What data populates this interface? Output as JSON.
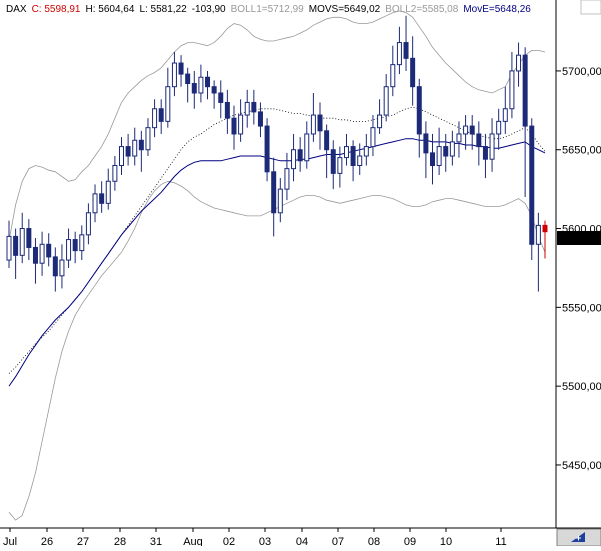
{
  "chart_data": {
    "type": "candlestick",
    "instrument": "DAX",
    "header": [
      {
        "text": "DAX",
        "color": "#000000"
      },
      {
        "text": "C: 5598,91",
        "color": "#d00000"
      },
      {
        "text": "H: 5604,64",
        "color": "#000000"
      },
      {
        "text": "L: 5581,22",
        "color": "#000000"
      },
      {
        "text": "-103,90",
        "color": "#000000"
      },
      {
        "text": "BOLL1=5712,99",
        "color": "#999999"
      },
      {
        "text": "MOVS=5649,02",
        "color": "#000000"
      },
      {
        "text": "BOLL2=5585,08",
        "color": "#999999"
      },
      {
        "text": "MovE=5648,26",
        "color": "#000080"
      }
    ],
    "ylim": [
      5410,
      5745
    ],
    "y_ticks": [
      {
        "value": 5700,
        "label": "5700,00"
      },
      {
        "value": 5650,
        "label": "5650,00"
      },
      {
        "value": 5600,
        "label": "5600,00"
      },
      {
        "value": 5550,
        "label": "5550,00"
      },
      {
        "value": 5500,
        "label": "5500,00"
      },
      {
        "value": 5450,
        "label": "5450,00"
      }
    ],
    "last_price": {
      "value": 5598.91,
      "label": "5598,91"
    },
    "x_ticks": [
      "Jul",
      "26",
      "27",
      "28",
      "31",
      "Aug",
      "02",
      "03",
      "04",
      "07",
      "08",
      "09",
      "10",
      "11"
    ],
    "candles": [
      [
        5580,
        5595,
        5605,
        5575
      ],
      [
        5595,
        5583,
        5600,
        5568
      ],
      [
        5583,
        5600,
        5610,
        5578
      ],
      [
        5600,
        5588,
        5606,
        5580
      ],
      [
        5588,
        5578,
        5594,
        5565
      ],
      [
        5578,
        5590,
        5598,
        5570
      ],
      [
        5590,
        5582,
        5597,
        5576
      ],
      [
        5582,
        5570,
        5588,
        5560
      ],
      [
        5570,
        5580,
        5590,
        5562
      ],
      [
        5580,
        5593,
        5600,
        5575
      ],
      [
        5593,
        5586,
        5598,
        5578
      ],
      [
        5586,
        5596,
        5602,
        5580
      ],
      [
        5596,
        5610,
        5616,
        5590
      ],
      [
        5610,
        5622,
        5628,
        5604
      ],
      [
        5622,
        5616,
        5630,
        5610
      ],
      [
        5616,
        5630,
        5638,
        5612
      ],
      [
        5630,
        5640,
        5646,
        5624
      ],
      [
        5640,
        5652,
        5658,
        5634
      ],
      [
        5652,
        5646,
        5660,
        5640
      ],
      [
        5646,
        5656,
        5664,
        5640
      ],
      [
        5656,
        5650,
        5662,
        5636
      ],
      [
        5650,
        5664,
        5670,
        5646
      ],
      [
        5664,
        5676,
        5682,
        5658
      ],
      [
        5676,
        5668,
        5682,
        5660
      ],
      [
        5668,
        5690,
        5702,
        5664
      ],
      [
        5690,
        5705,
        5712,
        5684
      ],
      [
        5705,
        5698,
        5710,
        5690
      ],
      [
        5698,
        5692,
        5702,
        5680
      ],
      [
        5692,
        5686,
        5700,
        5676
      ],
      [
        5686,
        5696,
        5704,
        5680
      ],
      [
        5696,
        5690,
        5700,
        5682
      ],
      [
        5690,
        5686,
        5694,
        5676
      ],
      [
        5686,
        5680,
        5694,
        5670
      ],
      [
        5680,
        5670,
        5688,
        5660
      ],
      [
        5670,
        5660,
        5678,
        5650
      ],
      [
        5660,
        5672,
        5682,
        5655
      ],
      [
        5672,
        5680,
        5688,
        5664
      ],
      [
        5680,
        5674,
        5688,
        5666
      ],
      [
        5674,
        5665,
        5680,
        5658
      ],
      [
        5665,
        5636,
        5670,
        5630
      ],
      [
        5636,
        5610,
        5645,
        5595
      ],
      [
        5610,
        5625,
        5632,
        5604
      ],
      [
        5625,
        5638,
        5648,
        5618
      ],
      [
        5638,
        5650,
        5660,
        5630
      ],
      [
        5650,
        5643,
        5658,
        5636
      ],
      [
        5643,
        5660,
        5668,
        5638
      ],
      [
        5660,
        5672,
        5686,
        5655
      ],
      [
        5672,
        5662,
        5680,
        5650
      ],
      [
        5662,
        5650,
        5666,
        5632
      ],
      [
        5650,
        5635,
        5656,
        5625
      ],
      [
        5635,
        5645,
        5652,
        5626
      ],
      [
        5645,
        5652,
        5660,
        5640
      ],
      [
        5652,
        5640,
        5656,
        5630
      ],
      [
        5640,
        5646,
        5654,
        5634
      ],
      [
        5646,
        5652,
        5660,
        5640
      ],
      [
        5652,
        5664,
        5672,
        5646
      ],
      [
        5664,
        5672,
        5682,
        5660
      ],
      [
        5672,
        5690,
        5698,
        5668
      ],
      [
        5690,
        5704,
        5716,
        5684
      ],
      [
        5704,
        5718,
        5728,
        5698
      ],
      [
        5718,
        5708,
        5735,
        5700
      ],
      [
        5708,
        5690,
        5722,
        5678
      ],
      [
        5690,
        5660,
        5695,
        5645
      ],
      [
        5660,
        5648,
        5668,
        5632
      ],
      [
        5648,
        5640,
        5660,
        5628
      ],
      [
        5640,
        5652,
        5664,
        5634
      ],
      [
        5652,
        5646,
        5660,
        5636
      ],
      [
        5646,
        5655,
        5662,
        5640
      ],
      [
        5655,
        5660,
        5668,
        5645
      ],
      [
        5660,
        5665,
        5672,
        5650
      ],
      [
        5665,
        5660,
        5672,
        5650
      ],
      [
        5660,
        5652,
        5668,
        5640
      ],
      [
        5652,
        5644,
        5660,
        5632
      ],
      [
        5644,
        5660,
        5670,
        5636
      ],
      [
        5660,
        5668,
        5676,
        5650
      ],
      [
        5668,
        5676,
        5690,
        5660
      ],
      [
        5676,
        5700,
        5712,
        5670
      ],
      [
        5700,
        5710,
        5718,
        5690
      ],
      [
        5710,
        5665,
        5715,
        5620
      ],
      [
        5665,
        5590,
        5670,
        5580
      ],
      [
        5590,
        5602,
        5610,
        5560
      ],
      [
        5602,
        5598,
        5605,
        5581
      ]
    ],
    "series": [
      {
        "name": "BOLL1",
        "color": "#999999",
        "values": [
          5592,
          5615,
          5630,
          5638,
          5640,
          5639,
          5637,
          5636,
          5633,
          5630,
          5631,
          5636,
          5640,
          5646,
          5652,
          5660,
          5670,
          5680,
          5686,
          5690,
          5694,
          5697,
          5699,
          5702,
          5707,
          5712,
          5716,
          5718,
          5718,
          5717,
          5716,
          5718,
          5722,
          5727,
          5730,
          5729,
          5726,
          5722,
          5720,
          5719,
          5719,
          5720,
          5721,
          5722,
          5724,
          5726,
          5729,
          5731,
          5733,
          5734,
          5734,
          5733,
          5731,
          5730,
          5730,
          5731,
          5733,
          5735,
          5737,
          5738,
          5737,
          5734,
          5728,
          5722,
          5715,
          5710,
          5705,
          5701,
          5697,
          5693,
          5690,
          5688,
          5687,
          5686,
          5688,
          5690,
          5698,
          5704,
          5710,
          5713,
          5713,
          5712
        ]
      },
      {
        "name": "MOVS",
        "color": "#000000",
        "values": [
          5508,
          5512,
          5517,
          5522,
          5527,
          5531,
          5535,
          5540,
          5545,
          5550,
          5555,
          5560,
          5566,
          5572,
          5578,
          5584,
          5590,
          5596,
          5602,
          5608,
          5614,
          5620,
          5626,
          5632,
          5638,
          5644,
          5650,
          5655,
          5658,
          5660,
          5663,
          5666,
          5668,
          5670,
          5672,
          5673,
          5674,
          5675,
          5676,
          5676,
          5676,
          5675,
          5674,
          5673,
          5673,
          5672,
          5671,
          5670,
          5670,
          5670,
          5669,
          5669,
          5668,
          5668,
          5668,
          5669,
          5670,
          5671,
          5672,
          5674,
          5676,
          5677,
          5676,
          5674,
          5672,
          5670,
          5668,
          5666,
          5664,
          5662,
          5660,
          5659,
          5658,
          5657,
          5657,
          5658,
          5660,
          5662,
          5664,
          5660,
          5654,
          5649
        ]
      },
      {
        "name": "BOLL2",
        "color": "#999999",
        "values": [
          5420,
          5415,
          5418,
          5430,
          5445,
          5465,
          5485,
          5505,
          5522,
          5535,
          5545,
          5552,
          5558,
          5564,
          5570,
          5575,
          5580,
          5585,
          5592,
          5600,
          5610,
          5618,
          5624,
          5628,
          5630,
          5629,
          5627,
          5624,
          5620,
          5617,
          5615,
          5613,
          5612,
          5611,
          5610,
          5609,
          5608,
          5608,
          5608,
          5610,
          5612,
          5614,
          5616,
          5618,
          5620,
          5621,
          5621,
          5620,
          5618,
          5617,
          5616,
          5617,
          5618,
          5619,
          5620,
          5621,
          5621,
          5620,
          5619,
          5617,
          5615,
          5614,
          5614,
          5615,
          5617,
          5618,
          5619,
          5619,
          5618,
          5617,
          5616,
          5615,
          5614,
          5614,
          5614,
          5615,
          5617,
          5619,
          5616,
          5608,
          5595,
          5585
        ]
      },
      {
        "name": "MovE",
        "color": "#000080",
        "values": [
          5500,
          5506,
          5513,
          5520,
          5526,
          5532,
          5537,
          5542,
          5546,
          5550,
          5555,
          5560,
          5566,
          5572,
          5578,
          5584,
          5590,
          5596,
          5601,
          5606,
          5611,
          5615,
          5619,
          5623,
          5628,
          5633,
          5637,
          5640,
          5642,
          5643,
          5643,
          5643,
          5643,
          5644,
          5645,
          5646,
          5646,
          5646,
          5646,
          5645,
          5644,
          5643,
          5643,
          5643,
          5644,
          5644,
          5645,
          5646,
          5647,
          5647,
          5647,
          5648,
          5649,
          5650,
          5651,
          5652,
          5653,
          5654,
          5655,
          5656,
          5657,
          5657,
          5656,
          5656,
          5655,
          5655,
          5655,
          5654,
          5654,
          5653,
          5653,
          5652,
          5652,
          5651,
          5651,
          5652,
          5653,
          5654,
          5655,
          5652,
          5650,
          5648
        ]
      }
    ]
  }
}
